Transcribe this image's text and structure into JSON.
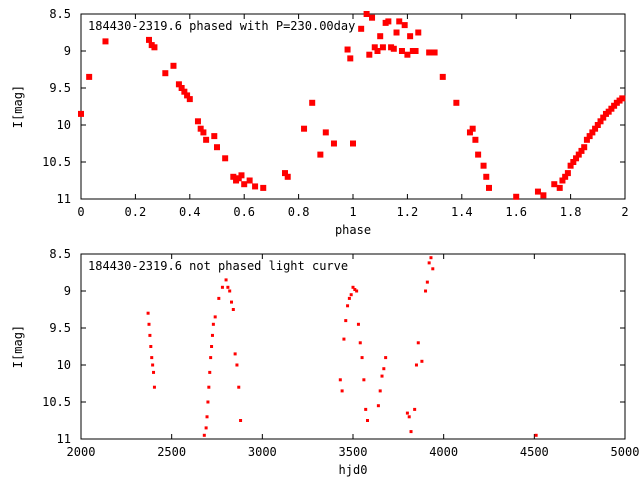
{
  "chart_data": [
    {
      "type": "scatter",
      "title": "184430-2319.6 phased with P=230.00day",
      "xlabel": "phase",
      "ylabel": "I[mag]",
      "xlim": [
        0,
        2
      ],
      "ylim": [
        8.5,
        11
      ],
      "y_inverted": true,
      "grid": false,
      "xticks": [
        "0",
        "0.2",
        "0.4",
        "0.6",
        "0.8",
        "1",
        "1.2",
        "1.4",
        "1.6",
        "1.8",
        "2"
      ],
      "yticks": [
        "8.5",
        "9",
        "9.5",
        "10",
        "10.5",
        "11"
      ],
      "color": "#ff0000",
      "marker": "filled-square",
      "series": [
        {
          "x": [
            0.0,
            0.03,
            0.09,
            0.25,
            0.26,
            0.27,
            0.31,
            0.34,
            0.36,
            0.37,
            0.38,
            0.39,
            0.4,
            0.43,
            0.44,
            0.45,
            0.46,
            0.49,
            0.5,
            0.53,
            0.56,
            0.57,
            0.58,
            0.59,
            0.6,
            0.62,
            0.64,
            0.67,
            0.75,
            0.76,
            0.82,
            0.85,
            0.88,
            0.9,
            0.93,
            0.98,
            0.99,
            1.0,
            1.03,
            1.05,
            1.06,
            1.07,
            1.08,
            1.09,
            1.1,
            1.11,
            1.12,
            1.13,
            1.14,
            1.15,
            1.16,
            1.17,
            1.18,
            1.19,
            1.2,
            1.21,
            1.22,
            1.23,
            1.24,
            1.28,
            1.3,
            1.33,
            1.38,
            1.43,
            1.44,
            1.45,
            1.46,
            1.48,
            1.49,
            1.5,
            1.6,
            1.68,
            1.7,
            1.74,
            1.76,
            1.77,
            1.78,
            1.79,
            1.8,
            1.81,
            1.82,
            1.83,
            1.84,
            1.85,
            1.86,
            1.87,
            1.88,
            1.89,
            1.9,
            1.91,
            1.92,
            1.93,
            1.94,
            1.95,
            1.96,
            1.97,
            1.98,
            1.99
          ],
          "y": [
            9.85,
            9.35,
            8.87,
            8.85,
            8.92,
            8.95,
            9.3,
            9.2,
            9.45,
            9.5,
            9.55,
            9.6,
            9.65,
            9.95,
            10.05,
            10.1,
            10.2,
            10.15,
            10.3,
            10.45,
            10.7,
            10.75,
            10.72,
            10.68,
            10.8,
            10.75,
            10.83,
            10.85,
            10.65,
            10.7,
            10.05,
            9.7,
            10.4,
            10.1,
            10.25,
            8.98,
            9.1,
            10.25,
            8.7,
            8.5,
            9.05,
            8.55,
            8.95,
            9.0,
            8.8,
            8.95,
            8.62,
            8.6,
            8.95,
            8.97,
            8.75,
            8.6,
            9.0,
            8.65,
            9.05,
            8.8,
            9.0,
            9.0,
            8.75,
            9.02,
            9.02,
            9.35,
            9.7,
            10.1,
            10.05,
            10.2,
            10.4,
            10.55,
            10.7,
            10.85,
            10.97,
            10.9,
            10.95,
            10.8,
            10.85,
            10.75,
            10.7,
            10.65,
            10.55,
            10.5,
            10.45,
            10.4,
            10.35,
            10.3,
            10.2,
            10.15,
            10.1,
            10.05,
            10.0,
            9.95,
            9.9,
            9.85,
            9.82,
            9.78,
            9.74,
            9.7,
            9.67,
            9.64
          ]
        }
      ]
    },
    {
      "type": "scatter",
      "title": "184430-2319.6 not phased light curve",
      "xlabel": "hjd0",
      "ylabel": "I[mag]",
      "xlim": [
        2000,
        5000
      ],
      "ylim": [
        8.5,
        11
      ],
      "y_inverted": true,
      "grid": false,
      "xticks": [
        "2000",
        "2500",
        "3000",
        "3500",
        "4000",
        "4500",
        "5000"
      ],
      "yticks": [
        "8.5",
        "9",
        "9.5",
        "10",
        "10.5",
        "11"
      ],
      "color": "#ff0000",
      "marker": "small-dot",
      "series": [
        {
          "x": [
            2370,
            2375,
            2380,
            2385,
            2390,
            2395,
            2400,
            2405,
            2680,
            2690,
            2695,
            2700,
            2705,
            2710,
            2715,
            2720,
            2725,
            2730,
            2740,
            2760,
            2780,
            2800,
            2810,
            2820,
            2830,
            2840,
            2850,
            2860,
            2870,
            2880,
            3430,
            3440,
            3450,
            3460,
            3470,
            3480,
            3490,
            3500,
            3510,
            3520,
            3530,
            3540,
            3550,
            3560,
            3570,
            3580,
            3640,
            3650,
            3660,
            3670,
            3680,
            3800,
            3810,
            3820,
            3840,
            3850,
            3860,
            3880,
            3900,
            3910,
            3920,
            3930,
            3940,
            4510
          ],
          "y": [
            9.3,
            9.45,
            9.6,
            9.75,
            9.9,
            10.0,
            10.1,
            10.3,
            10.95,
            10.85,
            10.7,
            10.5,
            10.3,
            10.1,
            9.9,
            9.75,
            9.6,
            9.45,
            9.35,
            9.1,
            8.95,
            8.85,
            8.95,
            9.0,
            9.15,
            9.25,
            9.85,
            10.0,
            10.3,
            10.75,
            10.2,
            10.35,
            9.65,
            9.4,
            9.2,
            9.1,
            9.05,
            8.95,
            8.98,
            9.0,
            9.45,
            9.7,
            9.9,
            10.2,
            10.6,
            10.75,
            10.55,
            10.35,
            10.15,
            10.05,
            9.9,
            10.65,
            10.7,
            10.9,
            10.6,
            10.0,
            9.7,
            9.95,
            9.0,
            8.88,
            8.62,
            8.55,
            8.7,
            10.95
          ]
        }
      ]
    }
  ]
}
